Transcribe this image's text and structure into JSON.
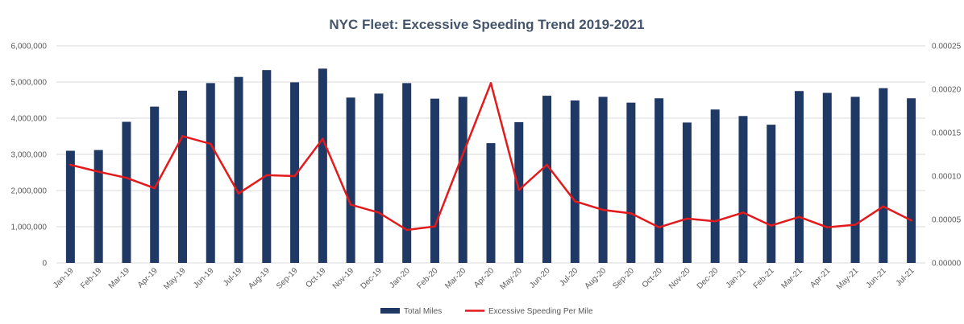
{
  "chart_data": {
    "type": "bar",
    "title": "NYC Fleet: Excessive Speeding Trend 2019-2021",
    "xlabel": "",
    "ylabel": "",
    "categories": [
      "Jan-19",
      "Feb-19",
      "Mar-19",
      "Apr-19",
      "May-19",
      "Jun-19",
      "Jul-19",
      "Aug-19",
      "Sep-19",
      "Oct-19",
      "Nov-19",
      "Dec-19",
      "Jan-20",
      "Feb-20",
      "Mar-20",
      "Apr-20",
      "May-20",
      "Jun-20",
      "Jul-20",
      "Aug-20",
      "Sep-20",
      "Oct-20",
      "Nov-20",
      "Dec-20",
      "Jan-21",
      "Feb-21",
      "Mar-21",
      "Apr-21",
      "May-21",
      "Jun-21",
      "Jul-21"
    ],
    "series": [
      {
        "name": "Total Miles",
        "type": "bar",
        "axis": "left",
        "color": "#1f3864",
        "values": [
          3100000,
          3120000,
          3900000,
          4320000,
          4760000,
          4970000,
          5140000,
          5330000,
          4990000,
          5370000,
          4570000,
          4680000,
          4970000,
          4540000,
          4590000,
          3310000,
          3890000,
          4620000,
          4490000,
          4590000,
          4430000,
          4550000,
          3880000,
          4240000,
          4060000,
          3820000,
          4750000,
          4700000,
          4590000,
          4830000,
          4550000
        ]
      },
      {
        "name": "Excessive Speeding Per Mile",
        "type": "line",
        "axis": "right",
        "color": "#e31a1c",
        "values": [
          0.000113,
          0.000105,
          9.8e-05,
          8.6e-05,
          0.000146,
          0.000137,
          8e-05,
          0.000101,
          0.0001,
          0.000143,
          6.7e-05,
          5.8e-05,
          3.8e-05,
          4.2e-05,
          0.000125,
          0.000207,
          8.4e-05,
          0.000113,
          7.1e-05,
          6.1e-05,
          5.7e-05,
          4.1e-05,
          5.1e-05,
          4.8e-05,
          5.8e-05,
          4.3e-05,
          5.3e-05,
          4.1e-05,
          4.4e-05,
          6.5e-05,
          4.9e-05
        ]
      }
    ],
    "ylim_left": [
      0,
      6000000
    ],
    "yticks_left": [
      "0",
      "1,000,000",
      "2,000,000",
      "3,000,000",
      "4,000,000",
      "5,000,000",
      "6,000,000"
    ],
    "ylim_right": [
      0,
      0.00025
    ],
    "yticks_right": [
      "0.00000",
      "0.00005",
      "0.00010",
      "0.00015",
      "0.00020",
      "0.00025"
    ],
    "grid": true,
    "legend_position": "bottom"
  }
}
